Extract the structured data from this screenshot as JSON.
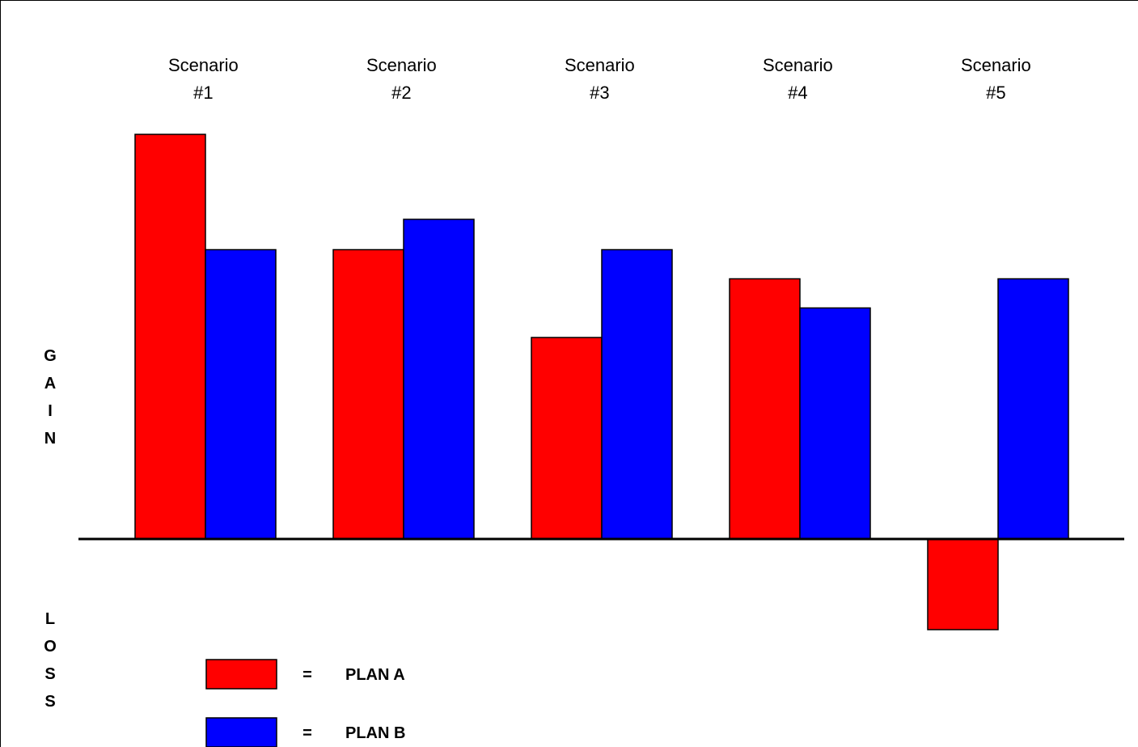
{
  "chart_data": {
    "type": "bar",
    "categories": [
      [
        "Scenario",
        "#1"
      ],
      [
        "Scenario",
        "#2"
      ],
      [
        "Scenario",
        "#3"
      ],
      [
        "Scenario",
        "#4"
      ],
      [
        "Scenario",
        "#5"
      ]
    ],
    "series": [
      {
        "key": "a",
        "values": [
          100,
          71.5,
          49.8,
          64.3,
          -22.4
        ],
        "color": "#ff0000"
      },
      {
        "key": "b",
        "values": [
          71.5,
          79.0,
          71.5,
          57.1,
          64.3
        ],
        "color": "#0000ff"
      }
    ],
    "ylim": [
      -30,
      110
    ],
    "grid": false,
    "axis_labels": {
      "gain": "GAIN",
      "loss": "LOSS"
    },
    "legend": {
      "placement": "bottom-left",
      "entries": [
        {
          "color": "#ff0000",
          "equals": "=",
          "label": "PLAN A"
        },
        {
          "color": "#0000ff",
          "equals": "=",
          "label": "PLAN B"
        }
      ]
    }
  }
}
